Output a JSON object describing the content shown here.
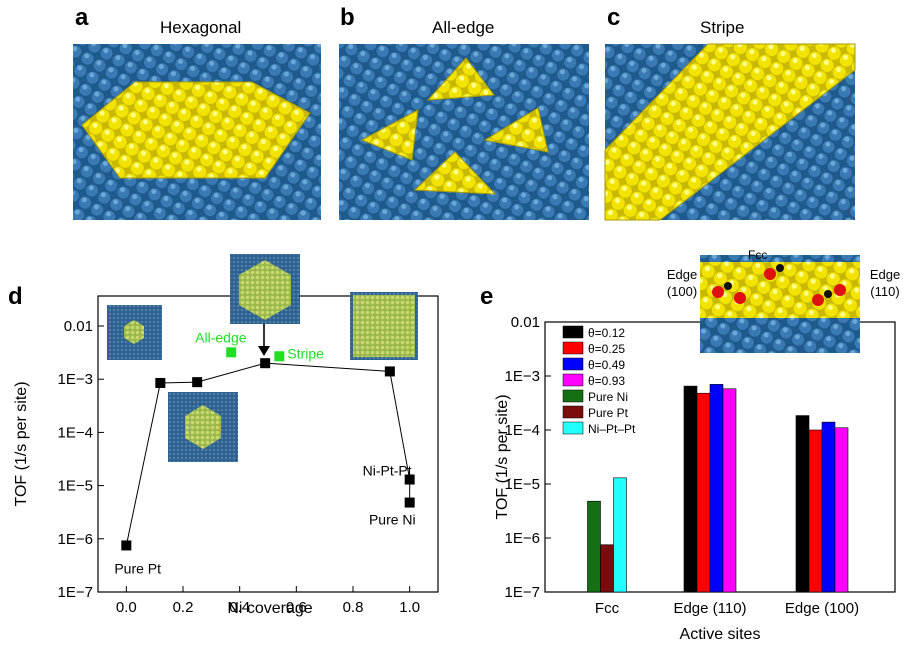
{
  "panels": {
    "a": {
      "letter": "a",
      "title": "Hexagonal"
    },
    "b": {
      "letter": "b",
      "title": "All-edge"
    },
    "c": {
      "letter": "c",
      "title": "Stripe"
    },
    "d": {
      "letter": "d"
    },
    "e": {
      "letter": "e"
    }
  },
  "colors": {
    "surface": "#2a6aa0",
    "gold": "#f0e000",
    "green_label": "#22dd22"
  },
  "chart_data": [
    {
      "type": "scatter",
      "panel": "d",
      "xlabel": "Ni coverage",
      "ylabel": "TOF (1/s per site)",
      "xlim": [
        -0.1,
        1.1
      ],
      "ylim": [
        1e-07,
        0.03
      ],
      "yscale": "log",
      "x_ticks": [
        "0.0",
        "0.2",
        "0.4",
        "0.6",
        "0.8",
        "1.0"
      ],
      "y_ticks": [
        "0.01",
        "1E−3",
        "1E−4",
        "1E−5",
        "1E−6",
        "1E−7"
      ],
      "series": [
        {
          "marker": "black-square",
          "connected": true,
          "points": [
            {
              "x": 0.0,
              "y": 7.5e-07,
              "label": "Pure Pt"
            },
            {
              "x": 0.12,
              "y": 0.00085,
              "label": ""
            },
            {
              "x": 0.25,
              "y": 0.00088,
              "label": ""
            },
            {
              "x": 0.49,
              "y": 0.002,
              "label": ""
            },
            {
              "x": 0.93,
              "y": 0.0014,
              "label": ""
            },
            {
              "x": 1.0,
              "y": 1.3e-05,
              "label": "Ni-Pt-Pt"
            },
            {
              "x": 1.0,
              "y": 4.8e-06,
              "label": "Pure Ni"
            }
          ]
        },
        {
          "marker": "green-square",
          "connected": false,
          "points": [
            {
              "x": 0.37,
              "y": 0.0032,
              "label": "All-edge"
            },
            {
              "x": 0.54,
              "y": 0.0027,
              "label": "Stripe"
            }
          ]
        }
      ]
    },
    {
      "type": "bar",
      "panel": "e",
      "xlabel": "Active sites",
      "ylabel": "TOF (1/s per site)",
      "yscale": "log",
      "ylim": [
        1e-07,
        0.01
      ],
      "y_ticks": [
        "0.01",
        "1E−3",
        "1E−4",
        "1E−5",
        "1E−6",
        "1E−7"
      ],
      "categories": [
        "Fcc",
        "Edge (110)",
        "Edge (100)"
      ],
      "series": [
        {
          "name": "θ=0.12",
          "color": "#000000",
          "values": [
            null,
            0.00065,
            0.000185
          ]
        },
        {
          "name": "θ=0.25",
          "color": "#ff0000",
          "values": [
            null,
            0.00048,
            0.0001
          ]
        },
        {
          "name": "θ=0.49",
          "color": "#0000ff",
          "values": [
            null,
            0.0007,
            0.00014
          ]
        },
        {
          "name": "θ=0.93",
          "color": "#ff00ff",
          "values": [
            null,
            0.00058,
            0.00011
          ]
        },
        {
          "name": "Pure Ni",
          "color": "#157015",
          "values": [
            4.8e-06,
            null,
            null
          ]
        },
        {
          "name": "Pure Pt",
          "color": "#7a0c0c",
          "values": [
            7.5e-07,
            null,
            null
          ]
        },
        {
          "name": "Ni–Pt–Pt",
          "color": "#22ffff",
          "values": [
            1.3e-05,
            null,
            null
          ]
        }
      ],
      "inset_labels": [
        "Fcc",
        "Edge (100)",
        "Edge (110)"
      ]
    }
  ]
}
